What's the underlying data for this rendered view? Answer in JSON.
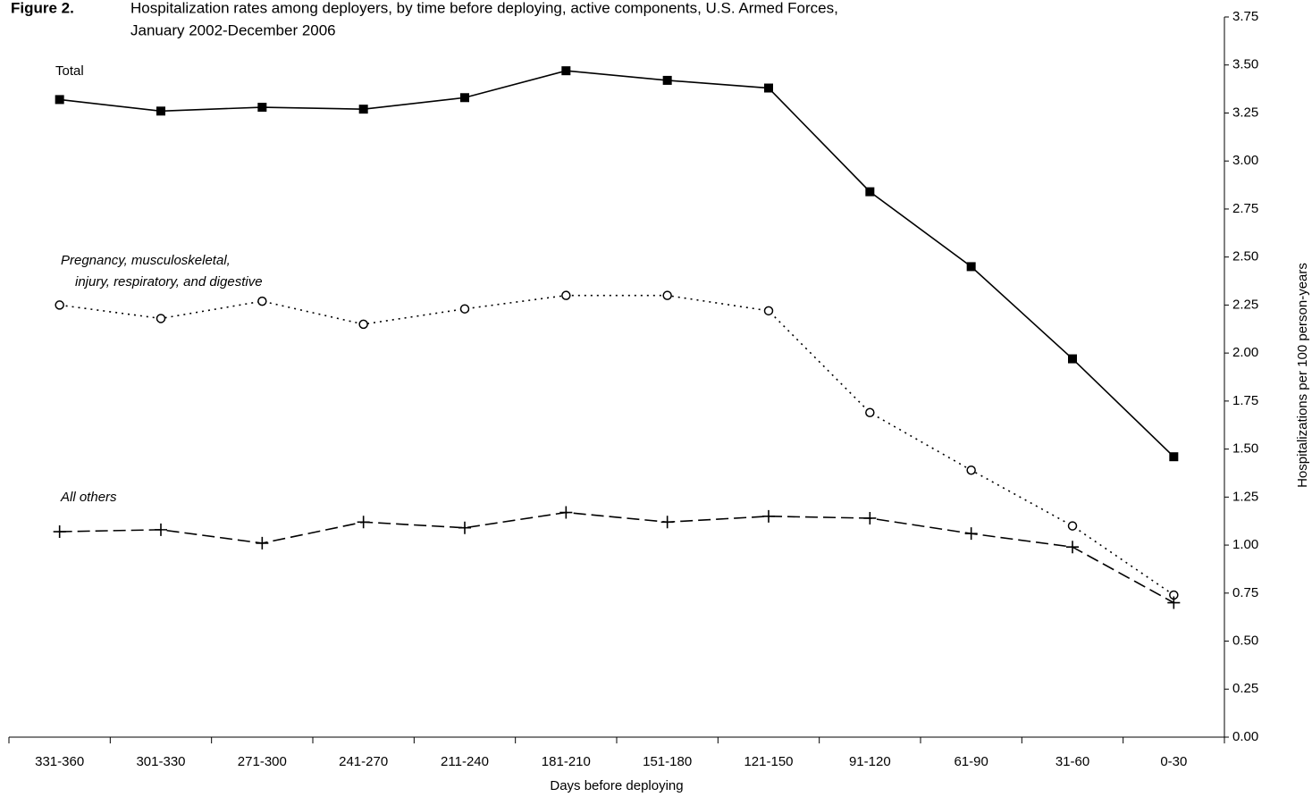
{
  "chart_data": {
    "type": "line",
    "title_label": "Figure 2.",
    "title": [
      "Hospitalization rates among deployers, by time before deploying, active components, U.S. Armed Forces,",
      "January 2002-December 2006"
    ],
    "x_label": "Days before deploying",
    "y_label": "Hospitalizations per 100 person-years",
    "y_axis_side": "right",
    "categories": [
      "331-360",
      "301-330",
      "271-300",
      "241-270",
      "211-240",
      "181-210",
      "151-180",
      "121-150",
      "91-120",
      "61-90",
      "31-60",
      "0-30"
    ],
    "series": [
      {
        "name": "Total",
        "color": "#000000",
        "line_style": "solid",
        "marker": "square",
        "values": [
          3.32,
          3.26,
          3.28,
          3.27,
          3.33,
          3.47,
          3.42,
          3.38,
          2.84,
          2.45,
          1.97,
          1.46
        ]
      },
      {
        "name": [
          "Pregnancy, musculoskeletal,",
          "injury, respiratory, and digestive"
        ],
        "color": "#000000",
        "line_style": "dotted",
        "marker": "circle",
        "values": [
          2.25,
          2.18,
          2.27,
          2.15,
          2.23,
          2.3,
          2.3,
          2.22,
          1.69,
          1.39,
          1.1,
          0.74
        ]
      },
      {
        "name": "All others",
        "color": "#000000",
        "line_style": "dashed",
        "marker": "plus",
        "values": [
          1.07,
          1.08,
          1.01,
          1.12,
          1.09,
          1.17,
          1.12,
          1.15,
          1.14,
          1.06,
          0.99,
          0.7
        ]
      }
    ],
    "ylim": [
      0,
      3.75
    ],
    "yticks": [
      {
        "value": 0,
        "label": "0.00"
      },
      0.25,
      {
        "value": 0.5,
        "label": "0.50"
      },
      0.75,
      {
        "value": 1,
        "label": "1.00"
      },
      1.25,
      {
        "value": 1.5,
        "label": "1.50"
      },
      1.75,
      {
        "value": 2,
        "label": "2.00"
      },
      2.25,
      {
        "value": 2.5,
        "label": "2.50"
      },
      2.75,
      {
        "value": 3,
        "label": "3.00"
      },
      3.25,
      {
        "value": 3.5,
        "label": "3.50"
      },
      3.75
    ],
    "grid": false
  }
}
